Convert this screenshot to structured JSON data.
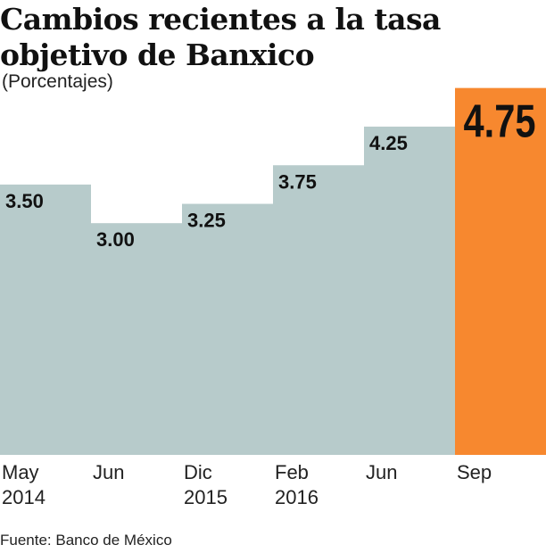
{
  "chart_data": {
    "type": "bar",
    "title_lines": [
      "Cambios recientes a la tasa",
      "objetivo de Banxico"
    ],
    "subtitle": "(Porcentajes)",
    "categories": [
      [
        "May",
        "2014"
      ],
      [
        "Jun",
        ""
      ],
      [
        "Dic",
        "2015"
      ],
      [
        "Feb",
        "2016"
      ],
      [
        "Jun",
        ""
      ],
      [
        "Sep",
        ""
      ]
    ],
    "values": [
      3.5,
      3.0,
      3.25,
      3.75,
      4.25,
      4.75
    ],
    "labels": [
      "3.50",
      "3.00",
      "3.25",
      "3.75",
      "4.25",
      "4.75"
    ],
    "ylim": [
      0,
      4.75
    ],
    "grid": false,
    "colors": {
      "bar": "#b7cbcb",
      "highlight": "#f7882f",
      "text": "#111111"
    },
    "highlight_index": 5
  },
  "source": "Fuente: Banco de México"
}
